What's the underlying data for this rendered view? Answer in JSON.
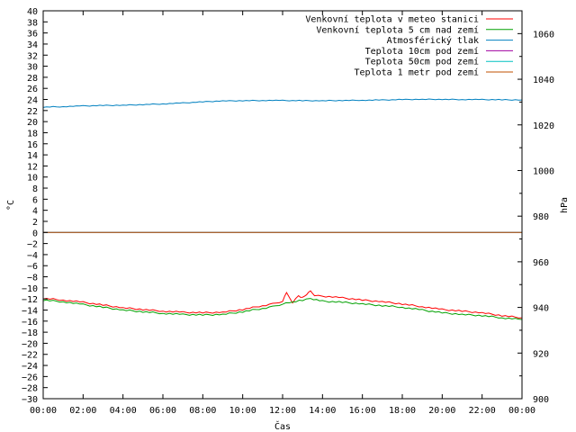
{
  "chart_data": {
    "type": "line",
    "xlabel": "Čas",
    "ylabel_left": "°C",
    "ylabel_right": "hPa",
    "x_ticks": [
      "00:00",
      "02:00",
      "04:00",
      "06:00",
      "08:00",
      "10:00",
      "12:00",
      "14:00",
      "16:00",
      "18:00",
      "20:00",
      "22:00",
      "00:00"
    ],
    "ylim_left": [
      -30,
      40
    ],
    "ylim_right": [
      900,
      1070
    ],
    "y_ticks_left": [
      "40",
      "38",
      "36",
      "34",
      "32",
      "30",
      "28",
      "26",
      "24",
      "22",
      "20",
      "18",
      "16",
      "14",
      "12",
      "10",
      "8",
      "6",
      "4",
      "2",
      "0",
      "−2",
      "−4",
      "−6",
      "−8",
      "−10",
      "−12",
      "−14",
      "−16",
      "−18",
      "−20",
      "−22",
      "−24",
      "−26",
      "−28",
      "−30"
    ],
    "y_ticks_right": [
      "1060",
      "1040",
      "1020",
      "1000",
      "980",
      "960",
      "940",
      "920",
      "900"
    ],
    "legend_position": "top-right",
    "grid": false,
    "series": [
      {
        "name": "Venkovní teplota v meteo stanici",
        "axis": "left",
        "color": "#ff0000",
        "x": [
          0,
          1,
          2,
          3,
          4,
          5,
          6,
          7,
          8,
          9,
          10,
          11,
          11.5,
          12,
          12.2,
          12.5,
          12.8,
          13,
          13.2,
          13.4,
          13.6,
          14,
          15,
          16,
          17,
          18,
          19,
          20,
          21,
          22,
          23,
          24
        ],
        "y": [
          -11.9,
          -12.2,
          -12.6,
          -13.1,
          -13.6,
          -13.9,
          -14.2,
          -14.4,
          -14.5,
          -14.4,
          -13.9,
          -13.2,
          -12.9,
          -12.4,
          -10.9,
          -12.6,
          -11.4,
          -11.8,
          -11.2,
          -10.6,
          -11.3,
          -11.5,
          -11.8,
          -12.2,
          -12.5,
          -12.9,
          -13.4,
          -13.9,
          -14.2,
          -14.5,
          -15,
          -15.4
        ]
      },
      {
        "name": "Venkovní teplota 5 cm nad zemí",
        "axis": "left",
        "color": "#00a000",
        "x": [
          0,
          1,
          2,
          3,
          4,
          5,
          6,
          7,
          8,
          9,
          10,
          11,
          11.5,
          12,
          12.5,
          13,
          13.4,
          14,
          15,
          16,
          17,
          18,
          19,
          20,
          21,
          22,
          23,
          24
        ],
        "y": [
          -12.2,
          -12.5,
          -13,
          -13.5,
          -14,
          -14.3,
          -14.6,
          -14.8,
          -14.9,
          -14.8,
          -14.3,
          -13.7,
          -13.4,
          -12.9,
          -12.6,
          -12.2,
          -11.9,
          -12.4,
          -12.6,
          -12.9,
          -13.2,
          -13.5,
          -14,
          -14.5,
          -14.8,
          -15,
          -15.4,
          -15.7
        ]
      },
      {
        "name": "Atmosférický tlak",
        "axis": "right",
        "color": "#0080c0",
        "x": [
          0,
          1,
          2,
          3,
          4,
          5,
          6,
          7,
          8,
          9,
          10,
          11,
          12,
          13,
          14,
          15,
          16,
          17,
          18,
          19,
          20,
          21,
          22,
          23,
          24
        ],
        "y": [
          1027.8,
          1028,
          1028.3,
          1028.5,
          1028.6,
          1028.9,
          1029.2,
          1029.6,
          1030.1,
          1030.5,
          1030.6,
          1030.7,
          1030.7,
          1030.6,
          1030.6,
          1030.7,
          1030.8,
          1030.9,
          1031.1,
          1031.2,
          1031.2,
          1031.1,
          1031.1,
          1031,
          1030.9
        ]
      },
      {
        "name": "Teplota 10cm pod zemí",
        "axis": "left",
        "color": "#a000a0",
        "x": [
          0,
          24
        ],
        "y": [
          0,
          0
        ]
      },
      {
        "name": "Teplota 50cm pod zemí",
        "axis": "left",
        "color": "#00c0c0",
        "x": [
          0,
          24
        ],
        "y": [
          0,
          0
        ]
      },
      {
        "name": "Teplota 1 metr pod zemí",
        "axis": "left",
        "color": "#c05000",
        "x": [
          0,
          24
        ],
        "y": [
          0,
          0
        ]
      }
    ]
  }
}
